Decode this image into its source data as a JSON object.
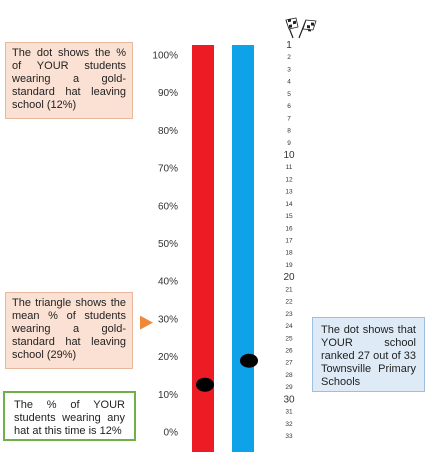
{
  "chart_data": {
    "type": "bar",
    "y_ticks": [
      "100%",
      "90%",
      "80%",
      "70%",
      "60%",
      "50%",
      "40%",
      "30%",
      "20%",
      "10%",
      "0%"
    ],
    "ylim": [
      0,
      100
    ],
    "bars": [
      {
        "name": "percent-bar",
        "color": "#ed1c24",
        "marker_value": 12
      },
      {
        "name": "rank-bar",
        "color": "#0ea2e8",
        "marker_value": 27
      }
    ],
    "mean_triangle_value": 29,
    "rank_scale": {
      "min": 1,
      "max": 33,
      "labels": [
        "1",
        "2",
        "3",
        "4",
        "5",
        "6",
        "7",
        "8",
        "9",
        "10",
        "11",
        "12",
        "13",
        "14",
        "15",
        "16",
        "17",
        "18",
        "19",
        "20",
        "21",
        "22",
        "23",
        "24",
        "25",
        "26",
        "27",
        "28",
        "29",
        "30",
        "31",
        "32",
        "33"
      ]
    },
    "your_school_rank": 27,
    "total_schools": 33,
    "triangle_color": "#f0883a",
    "marker_color": "#000000"
  },
  "notes": {
    "dot": "The dot shows the % of YOUR students wearing a gold-standard hat leaving school (12%)",
    "triangle": "The triangle shows the mean % of students wearing a gold-standard hat leaving school (29%)",
    "any_hat": "The % of YOUR students wearing any hat at this time is 12%",
    "rank": "The dot shows that YOUR school ranked 27 out of 33 Townsville Primary Schools"
  }
}
